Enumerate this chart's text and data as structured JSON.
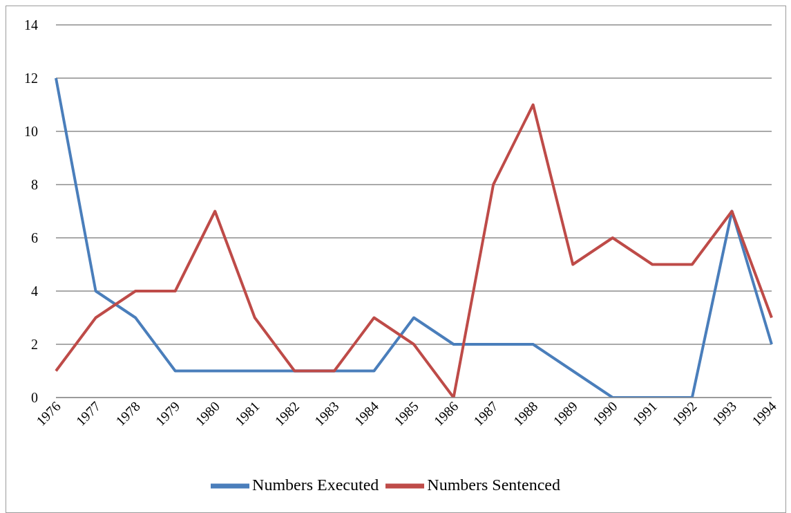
{
  "chart_data": {
    "type": "line",
    "categories": [
      "1976",
      "1977",
      "1978",
      "1979",
      "1980",
      "1981",
      "1982",
      "1983",
      "1984",
      "1985",
      "1986",
      "1987",
      "1988",
      "1989",
      "1990",
      "1991",
      "1992",
      "1993",
      "1994"
    ],
    "series": [
      {
        "name": "Numbers Executed",
        "color": "#4a7ebb",
        "values": [
          12,
          4,
          3,
          1,
          1,
          1,
          1,
          1,
          1,
          3,
          2,
          2,
          2,
          1,
          0,
          0,
          0,
          7,
          2
        ]
      },
      {
        "name": "Numbers Sentenced",
        "color": "#be4b48",
        "values": [
          1,
          3,
          4,
          4,
          7,
          3,
          1,
          1,
          3,
          2,
          0,
          8,
          11,
          5,
          6,
          5,
          5,
          7,
          3
        ]
      }
    ],
    "ylim": [
      0,
      14
    ],
    "yticks": [
      0,
      2,
      4,
      6,
      8,
      10,
      12,
      14
    ],
    "grid": "y",
    "legend": "bottom",
    "marker": "none",
    "line_style": "solid"
  }
}
